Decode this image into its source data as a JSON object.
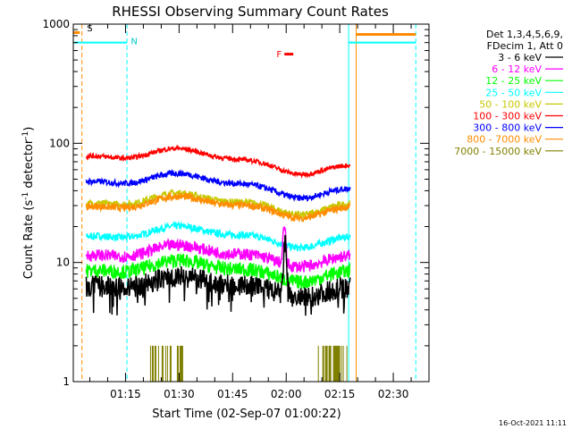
{
  "chart_data": {
    "type": "line",
    "title": "RHESSI Observing Summary Count Rates",
    "xlabel": "Start Time (02-Sep-07 01:00:22)",
    "ylabel_main": "Count Rate (s",
    "ylabel_sup1": "-1",
    "ylabel_mid": " detector",
    "ylabel_sup2": "-1",
    "ylabel_end": ")",
    "yscale": "log",
    "x_range_minutes": [
      0.37,
      100.0
    ],
    "ylim": [
      1,
      1000
    ],
    "x_ticks": [
      {
        "label": "01:15",
        "minute": 15
      },
      {
        "label": "01:30",
        "minute": 30
      },
      {
        "label": "01:45",
        "minute": 45
      },
      {
        "label": "02:00",
        "minute": 60
      },
      {
        "label": "02:15",
        "minute": 75
      },
      {
        "label": "02:30",
        "minute": 90
      }
    ],
    "y_ticks": [
      {
        "label": "1",
        "value": 1
      },
      {
        "label": "10",
        "value": 10
      },
      {
        "label": "100",
        "value": 100
      },
      {
        "label": "1000",
        "value": 1000
      }
    ],
    "legend_header": [
      "Det 1,3,4,5,6,9,",
      "FDecim 1, Att 0"
    ],
    "series": [
      {
        "name": "3 - 6 keV",
        "color": "#000000",
        "level": 6.8,
        "noise": 0.09
      },
      {
        "name": "6 - 12 keV",
        "color": "#ff00ff",
        "level": 12.5,
        "noise": 0.05
      },
      {
        "name": "12 - 25 keV",
        "color": "#00ff00",
        "level": 9.3,
        "noise": 0.06
      },
      {
        "name": "25 - 50 keV",
        "color": "#00ffff",
        "level": 18.0,
        "noise": 0.03
      },
      {
        "name": "50 - 100 keV",
        "color": "#c8c800",
        "level": 34.0,
        "noise": 0.03
      },
      {
        "name": "100 - 300 keV",
        "color": "#ff0000",
        "level": 85.0,
        "noise": 0.02
      },
      {
        "name": "300 - 800 keV",
        "color": "#0000ff",
        "level": 52.0,
        "noise": 0.025
      },
      {
        "name": "800 - 7000 keV",
        "color": "#ff8c00",
        "level": 32.0,
        "noise": 0.03
      },
      {
        "name": "7000 - 15000 keV",
        "color": "#808000",
        "level": 1.5,
        "noise": 0.0
      }
    ],
    "annotations": {
      "saa_label": "S",
      "night_label": "N",
      "flare_label": "F"
    },
    "timestamp": "16-Oct-2021 11:11"
  }
}
